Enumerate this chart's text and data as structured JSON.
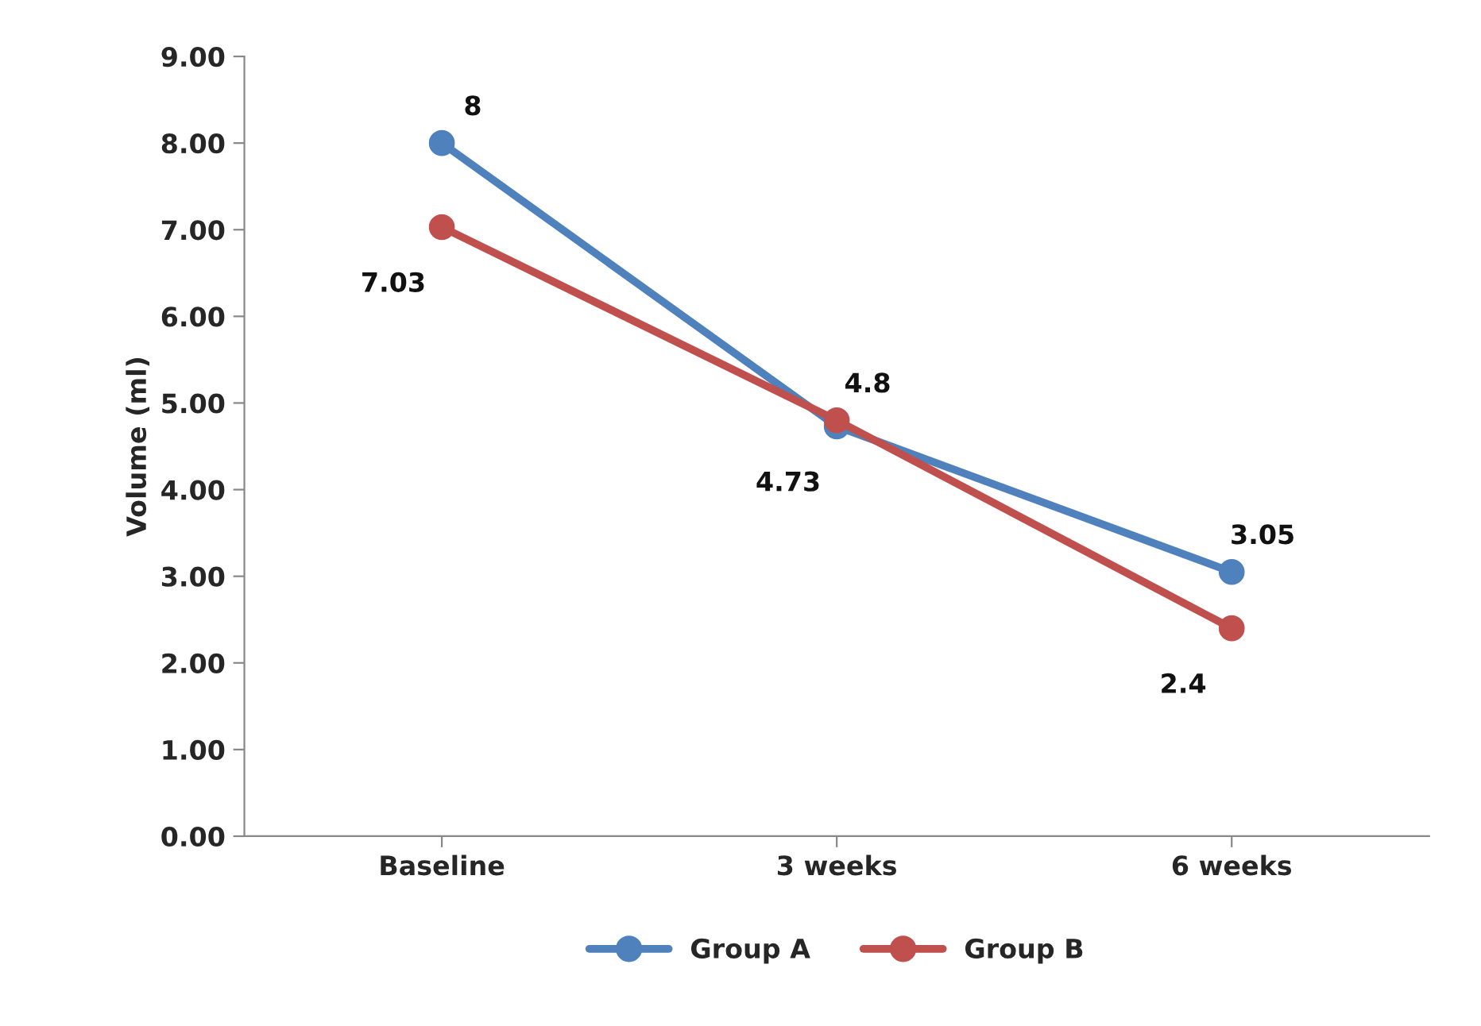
{
  "chart_data": {
    "type": "line",
    "ylabel": "Volume (ml)",
    "categories": [
      "Baseline",
      "3 weeks",
      "6 weeks"
    ],
    "series": [
      {
        "name": "Group A",
        "color": "#4f81bd",
        "values": [
          8,
          4.73,
          3.05
        ],
        "value_labels": [
          "8",
          "4.73",
          "3.05"
        ]
      },
      {
        "name": "Group B",
        "color": "#c0504d",
        "values": [
          7.03,
          4.8,
          2.4
        ],
        "value_labels": [
          "7.03",
          "4.8",
          "2.4"
        ]
      }
    ],
    "ylim": [
      0,
      9
    ],
    "yticks": [
      {
        "value": 0,
        "label": "0.00"
      },
      {
        "value": 1,
        "label": "1.00"
      },
      {
        "value": 2,
        "label": "2.00"
      },
      {
        "value": 3,
        "label": "3.00"
      },
      {
        "value": 4,
        "label": "4.00"
      },
      {
        "value": 5,
        "label": "5.00"
      },
      {
        "value": 6,
        "label": "6.00"
      },
      {
        "value": 7,
        "label": "7.00"
      },
      {
        "value": 8,
        "label": "8.00"
      },
      {
        "value": 9,
        "label": "9.00"
      }
    ],
    "legend": "bottom",
    "marker": "circle",
    "line_style": "solid",
    "grid": false
  }
}
